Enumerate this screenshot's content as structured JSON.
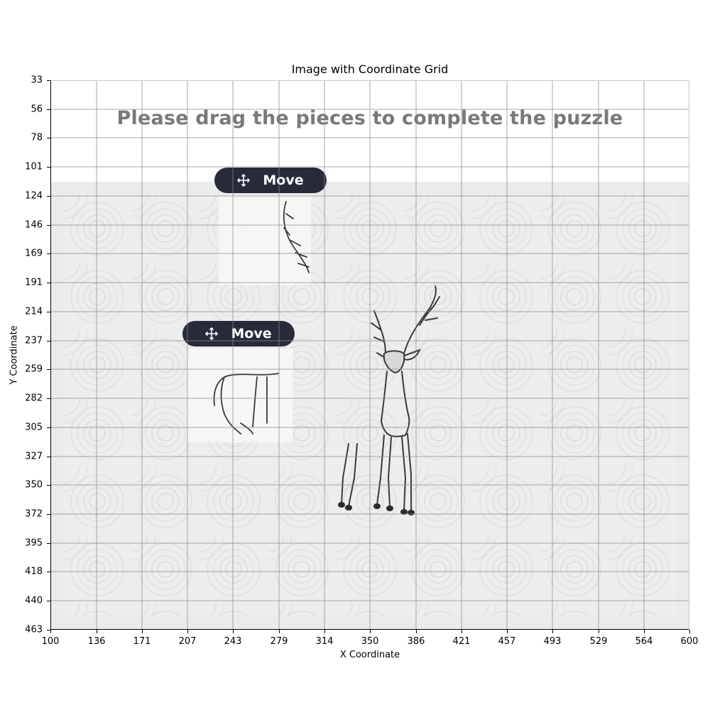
{
  "figure": {
    "title": "Image with Coordinate Grid",
    "xlabel": "X Coordinate",
    "ylabel": "Y Coordinate",
    "x_ticks": [
      "100",
      "136",
      "171",
      "207",
      "243",
      "279",
      "314",
      "350",
      "386",
      "421",
      "457",
      "493",
      "529",
      "564",
      "600"
    ],
    "y_ticks": [
      "33",
      "56",
      "78",
      "101",
      "124",
      "146",
      "169",
      "191",
      "214",
      "237",
      "259",
      "282",
      "305",
      "327",
      "350",
      "372",
      "395",
      "418",
      "440",
      "463"
    ]
  },
  "puzzle": {
    "instruction": "Please drag the pieces to complete the puzzle",
    "move_label": "Move",
    "move_icon": "move-arrows-icon",
    "board_color": "#ebebeb",
    "button_color": "#272b39",
    "subject": "deer"
  }
}
